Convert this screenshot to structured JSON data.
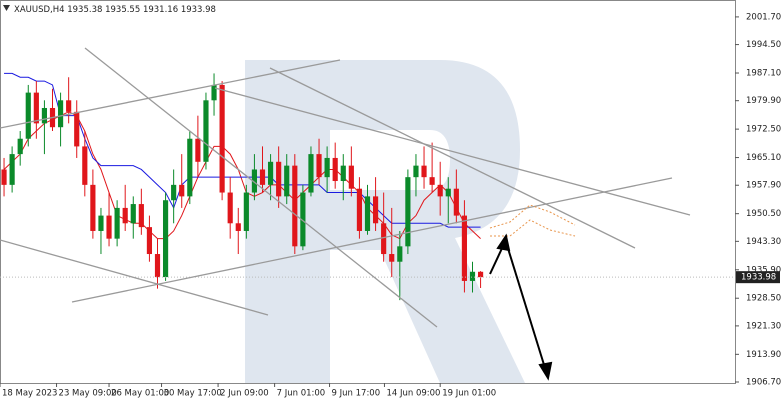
{
  "chart_data": {
    "type": "candlestick",
    "title": "XAUUSD,H4",
    "up_color": "#0b8a2a",
    "down_color": "#e0161b",
    "open": [
      1962,
      1958,
      1966,
      1970,
      1982,
      1974,
      1978,
      1973,
      1980,
      1977,
      1968,
      1958,
      1946,
      1950,
      1944,
      1952,
      1948,
      1953,
      1947,
      1940,
      1934,
      1954,
      1958,
      1955,
      1970,
      1964,
      1980,
      1984,
      1956,
      1948,
      1946,
      1956,
      1962,
      1958,
      1964,
      1955,
      1963,
      1942,
      1956,
      1966,
      1960,
      1965,
      1959,
      1963,
      1957,
      1946,
      1955,
      1948,
      1940,
      1938,
      1942,
      1960,
      1963,
      1960,
      1958,
      1955,
      1957,
      1950,
      1933,
      1935.38
    ],
    "high": [
      1965,
      1968,
      1972,
      1984,
      1985,
      1980,
      1983,
      1982,
      1986,
      1980,
      1972,
      1962,
      1952,
      1956,
      1954,
      1958,
      1955,
      1957,
      1950,
      1944,
      1956,
      1962,
      1966,
      1972,
      1976,
      1982,
      1987,
      1985,
      1960,
      1952,
      1958,
      1966,
      1968,
      1966,
      1968,
      1966,
      1966,
      1958,
      1968,
      1970,
      1968,
      1969,
      1966,
      1968,
      1960,
      1958,
      1960,
      1956,
      1952,
      1946,
      1962,
      1966,
      1968,
      1969,
      1964,
      1960,
      1962,
      1954,
      1938,
      1935.55
    ],
    "low": [
      1955,
      1956,
      1963,
      1968,
      1970,
      1966,
      1972,
      1968,
      1974,
      1965,
      1955,
      1944,
      1940,
      1942,
      1942,
      1946,
      1944,
      1945,
      1938,
      1931,
      1933,
      1948,
      1952,
      1953,
      1960,
      1962,
      1976,
      1954,
      1944,
      1940,
      1944,
      1954,
      1956,
      1954,
      1952,
      1953,
      1940,
      1941,
      1955,
      1958,
      1956,
      1957,
      1954,
      1955,
      1944,
      1945,
      1946,
      1938,
      1934,
      1928,
      1940,
      1955,
      1957,
      1956,
      1950,
      1948,
      1948,
      1930,
      1930,
      1931.16
    ],
    "close": [
      1958,
      1966,
      1970,
      1982,
      1974,
      1978,
      1973,
      1980,
      1977,
      1968,
      1958,
      1946,
      1950,
      1944,
      1952,
      1948,
      1953,
      1947,
      1940,
      1934,
      1954,
      1958,
      1955,
      1970,
      1964,
      1980,
      1984,
      1956,
      1948,
      1946,
      1956,
      1962,
      1958,
      1964,
      1955,
      1963,
      1942,
      1956,
      1966,
      1960,
      1965,
      1959,
      1963,
      1957,
      1946,
      1955,
      1948,
      1940,
      1938,
      1942,
      1960,
      1963,
      1960,
      1958,
      1955,
      1957,
      1950,
      1933,
      1935.38,
      1933.98
    ],
    "series": [
      {
        "color": "#e0161b",
        "values": [
          1962,
          1964,
          1966,
          1970,
          1972,
          1974,
          1975,
          1976,
          1977,
          1976,
          1972,
          1966,
          1962,
          1956,
          1950,
          1949,
          1948,
          1948,
          1946,
          1944,
          1944,
          1946,
          1950,
          1955,
          1960,
          1964,
          1968,
          1968,
          1966,
          1962,
          1956,
          1955,
          1956,
          1958,
          1958,
          1956,
          1954,
          1956,
          1958,
          1960,
          1962,
          1962,
          1960,
          1958,
          1956,
          1952,
          1950,
          1948,
          1945,
          1944,
          1948,
          1950,
          1954,
          1956,
          1958,
          1956,
          1952,
          1948,
          1946,
          1944
        ]
      },
      {
        "color": "#1a1ae0",
        "values": [
          1987,
          1987,
          1986,
          1986,
          1985,
          1985,
          1984,
          1976,
          1976,
          1976,
          1970,
          1965,
          1963,
          1963,
          1963,
          1963,
          1963,
          1962,
          1960,
          1958,
          1956,
          1952,
          1958,
          1960,
          1960,
          1960,
          1960,
          1960,
          1960,
          1960,
          1960,
          1960,
          1960,
          1960,
          1958,
          1958,
          1958,
          1958,
          1958,
          1958,
          1956,
          1956,
          1956,
          1956,
          1956,
          1954,
          1952,
          1950,
          1948,
          1948,
          1948,
          1948,
          1948,
          1948,
          1948,
          1947,
          1947,
          1947,
          1947,
          1947
        ]
      }
    ],
    "xlim": [
      0,
      91
    ],
    "xticks": [
      {
        "value": 0,
        "label": "18 May 2023"
      },
      {
        "value": 7,
        "label": "23 May 09:00"
      },
      {
        "value": 13.5,
        "label": "26 May 01:00"
      },
      {
        "value": 20,
        "label": "30 May 17:00"
      },
      {
        "value": 27,
        "label": "2 Jun 09:00"
      },
      {
        "value": 34,
        "label": "7 Jun 01:00"
      },
      {
        "value": 40.8,
        "label": "9 Jun 17:00"
      },
      {
        "value": 47.6,
        "label": "14 Jun 09:00"
      },
      {
        "value": 54.5,
        "label": "19 Jun 01:00"
      }
    ],
    "ylim": [
      1906.44,
      2006.1
    ],
    "yticks": [
      {
        "value": 2001.7,
        "label": "2001.70"
      },
      {
        "value": 1994.5,
        "label": "1994.50"
      },
      {
        "value": 1987.1,
        "label": "1987.10"
      },
      {
        "value": 1979.9,
        "label": "1979.90"
      },
      {
        "value": 1972.5,
        "label": "1972.50"
      },
      {
        "value": 1965.1,
        "label": "1965.10"
      },
      {
        "value": 1957.9,
        "label": "1957.90"
      },
      {
        "value": 1950.5,
        "label": "1950.50"
      },
      {
        "value": 1943.3,
        "label": "1943.30"
      },
      {
        "value": 1935.9,
        "label": "1935.90"
      },
      {
        "value": 1928.5,
        "label": "1928.50"
      },
      {
        "value": 1921.3,
        "label": "1921.30"
      },
      {
        "value": 1913.9,
        "label": "1913.90"
      },
      {
        "value": 1906.7,
        "label": "1906.70"
      }
    ],
    "grid": false
  }
}
